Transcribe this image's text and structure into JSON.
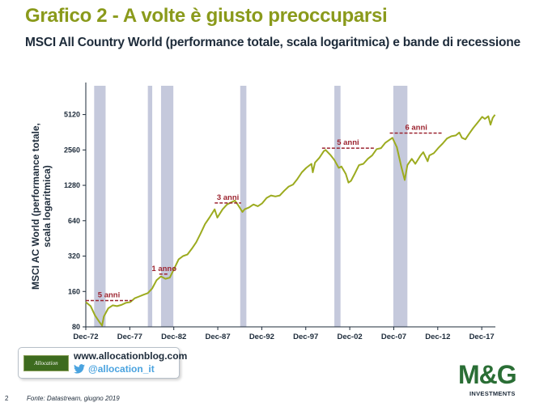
{
  "header": {
    "title": "Grafico 2 - A volte è giusto preoccuparsi",
    "subtitle": "MSCI All Country World (performance totale, scala logaritmica) e bande di recessione"
  },
  "social": {
    "logo_text": "Allocation",
    "blog_url": "www.allocationblog.com",
    "twitter_handle": "@allocation_it",
    "twitter_icon": "twitter-bird-icon",
    "twitter_color": "#4aa3df"
  },
  "footer": {
    "page_number": "2",
    "source": "Fonte: Datastream, giugno 2019"
  },
  "brand": {
    "logo_text": "M&G",
    "logo_subtext": "INVESTMENTS",
    "color": "#2a6e35"
  },
  "colors": {
    "title": "#8a9a1b",
    "line": "#9cab1f",
    "recession_band": "#c5c9dc",
    "annotation": "#9c2430"
  },
  "chart_data": {
    "type": "line",
    "scale": "log",
    "ylabel": "MSCI AC World (performance totale, scala logaritmica)",
    "yticks": [
      80,
      160,
      320,
      640,
      1280,
      2560,
      5120
    ],
    "ylim": [
      80,
      9000
    ],
    "xticks": [
      "Dec-72",
      "Dec-77",
      "Dec-82",
      "Dec-87",
      "Dec-92",
      "Dec-97",
      "Dec-02",
      "Dec-07",
      "Dec-12",
      "Dec-17"
    ],
    "xlim": [
      1972.95,
      2019.5
    ],
    "grid": false,
    "series": [
      {
        "points": [
          [
            1972.95,
            130
          ],
          [
            1973.5,
            120
          ],
          [
            1974.0,
            100
          ],
          [
            1974.5,
            88
          ],
          [
            1974.8,
            82
          ],
          [
            1975.0,
            98
          ],
          [
            1975.5,
            115
          ],
          [
            1976.0,
            122
          ],
          [
            1976.5,
            120
          ],
          [
            1977.0,
            123
          ],
          [
            1977.5,
            128
          ],
          [
            1978.0,
            130
          ],
          [
            1978.5,
            140
          ],
          [
            1979.0,
            145
          ],
          [
            1979.5,
            150
          ],
          [
            1980.0,
            155
          ],
          [
            1980.5,
            170
          ],
          [
            1981.0,
            200
          ],
          [
            1981.5,
            215
          ],
          [
            1982.0,
            205
          ],
          [
            1982.5,
            210
          ],
          [
            1983.0,
            250
          ],
          [
            1983.5,
            300
          ],
          [
            1984.0,
            320
          ],
          [
            1984.5,
            330
          ],
          [
            1985.0,
            370
          ],
          [
            1985.5,
            420
          ],
          [
            1986.0,
            500
          ],
          [
            1986.5,
            600
          ],
          [
            1987.0,
            680
          ],
          [
            1987.6,
            800
          ],
          [
            1987.9,
            680
          ],
          [
            1988.5,
            800
          ],
          [
            1989.0,
            880
          ],
          [
            1989.9,
            950
          ],
          [
            1990.3,
            860
          ],
          [
            1990.75,
            760
          ],
          [
            1991.0,
            800
          ],
          [
            1991.5,
            830
          ],
          [
            1992.0,
            880
          ],
          [
            1992.5,
            850
          ],
          [
            1993.0,
            900
          ],
          [
            1993.5,
            1000
          ],
          [
            1994.0,
            1050
          ],
          [
            1994.5,
            1030
          ],
          [
            1995.0,
            1050
          ],
          [
            1995.5,
            1150
          ],
          [
            1996.0,
            1250
          ],
          [
            1996.5,
            1300
          ],
          [
            1997.0,
            1450
          ],
          [
            1997.5,
            1650
          ],
          [
            1998.0,
            1800
          ],
          [
            1998.6,
            1950
          ],
          [
            1998.75,
            1650
          ],
          [
            1999.0,
            2000
          ],
          [
            1999.5,
            2200
          ],
          [
            2000.0,
            2500
          ],
          [
            2000.2,
            2560
          ],
          [
            2000.8,
            2300
          ],
          [
            2001.2,
            2100
          ],
          [
            2001.7,
            1800
          ],
          [
            2002.0,
            1850
          ],
          [
            2002.5,
            1600
          ],
          [
            2002.8,
            1350
          ],
          [
            2003.1,
            1400
          ],
          [
            2003.5,
            1600
          ],
          [
            2004.0,
            1900
          ],
          [
            2004.5,
            1950
          ],
          [
            2005.0,
            2150
          ],
          [
            2005.5,
            2300
          ],
          [
            2006.0,
            2600
          ],
          [
            2006.5,
            2650
          ],
          [
            2007.0,
            2950
          ],
          [
            2007.8,
            3250
          ],
          [
            2008.3,
            2700
          ],
          [
            2008.8,
            1850
          ],
          [
            2009.2,
            1420
          ],
          [
            2009.5,
            1900
          ],
          [
            2010.0,
            2150
          ],
          [
            2010.4,
            1950
          ],
          [
            2011.0,
            2300
          ],
          [
            2011.3,
            2450
          ],
          [
            2011.8,
            2050
          ],
          [
            2012.0,
            2300
          ],
          [
            2012.5,
            2400
          ],
          [
            2013.0,
            2650
          ],
          [
            2013.5,
            2900
          ],
          [
            2014.0,
            3200
          ],
          [
            2014.5,
            3350
          ],
          [
            2015.0,
            3400
          ],
          [
            2015.4,
            3600
          ],
          [
            2015.7,
            3250
          ],
          [
            2016.1,
            3150
          ],
          [
            2016.5,
            3500
          ],
          [
            2017.0,
            3950
          ],
          [
            2017.5,
            4400
          ],
          [
            2018.0,
            4900
          ],
          [
            2018.3,
            4700
          ],
          [
            2018.7,
            4950
          ],
          [
            2018.95,
            4200
          ],
          [
            2019.2,
            4800
          ],
          [
            2019.45,
            5100
          ]
        ]
      }
    ],
    "recession_bands": [
      [
        1973.9,
        1975.2
      ],
      [
        1980.0,
        1980.5
      ],
      [
        1981.5,
        1982.9
      ],
      [
        1990.5,
        1991.2
      ],
      [
        2001.2,
        2001.9
      ],
      [
        2007.9,
        2009.5
      ]
    ],
    "annotations": [
      {
        "label": "5 anni",
        "x_start": 1972.95,
        "x_end": 1978.2,
        "y": 134
      },
      {
        "label": "1 anno",
        "x_start": 1981.3,
        "x_end": 1982.4,
        "y": 225
      },
      {
        "label": "3 anni",
        "x_start": 1987.6,
        "x_end": 1990.6,
        "y": 905
      },
      {
        "label": "5 anni",
        "x_start": 1999.8,
        "x_end": 2005.7,
        "y": 2650
      },
      {
        "label": "6 anni",
        "x_start": 2007.5,
        "x_end": 2013.5,
        "y": 3560
      }
    ]
  }
}
